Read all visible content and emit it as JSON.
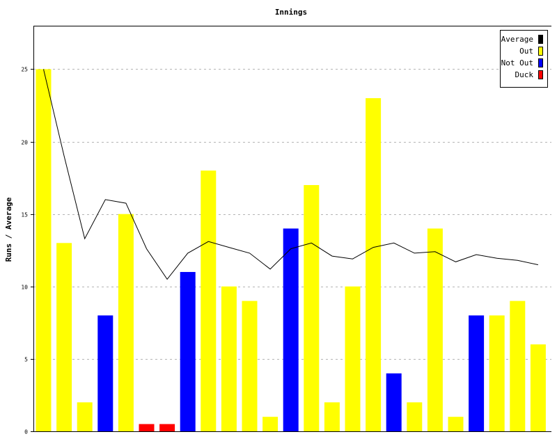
{
  "chart_data": {
    "type": "bar",
    "title": "Innings",
    "xlabel": "",
    "ylabel": "Runs / Average",
    "ylim": [
      0,
      28
    ],
    "yticks": [
      0,
      5,
      10,
      15,
      20,
      25
    ],
    "grid": true,
    "legend_position": "top-right",
    "legend": [
      {
        "label": "Average",
        "color": "#000000"
      },
      {
        "label": "Out",
        "color": "#ffff00"
      },
      {
        "label": "Not Out",
        "color": "#0000ff"
      },
      {
        "label": "Duck",
        "color": "#ff0000"
      }
    ],
    "innings": [
      {
        "runs": 25,
        "status": "Out"
      },
      {
        "runs": 13,
        "status": "Out"
      },
      {
        "runs": 2,
        "status": "Out"
      },
      {
        "runs": 8,
        "status": "Not Out"
      },
      {
        "runs": 15,
        "status": "Out"
      },
      {
        "runs": 0,
        "status": "Duck"
      },
      {
        "runs": 0,
        "status": "Duck"
      },
      {
        "runs": 11,
        "status": "Not Out"
      },
      {
        "runs": 18,
        "status": "Out"
      },
      {
        "runs": 10,
        "status": "Out"
      },
      {
        "runs": 9,
        "status": "Out"
      },
      {
        "runs": 1,
        "status": "Out"
      },
      {
        "runs": 14,
        "status": "Not Out"
      },
      {
        "runs": 17,
        "status": "Out"
      },
      {
        "runs": 2,
        "status": "Out"
      },
      {
        "runs": 10,
        "status": "Out"
      },
      {
        "runs": 23,
        "status": "Out"
      },
      {
        "runs": 4,
        "status": "Not Out"
      },
      {
        "runs": 2,
        "status": "Out"
      },
      {
        "runs": 14,
        "status": "Out"
      },
      {
        "runs": 1,
        "status": "Out"
      },
      {
        "runs": 8,
        "status": "Not Out"
      },
      {
        "runs": 8,
        "status": "Out"
      },
      {
        "runs": 9,
        "status": "Out"
      },
      {
        "runs": 6,
        "status": "Out"
      }
    ],
    "average_series": [
      25,
      19,
      13.3,
      16,
      15.75,
      12.6,
      10.5,
      12.3,
      13.1,
      12.7,
      12.3,
      11.2,
      12.6,
      13,
      12.1,
      11.9,
      12.7,
      13,
      12.3,
      12.4,
      11.7,
      12.2,
      11.95,
      11.8,
      11.5
    ]
  }
}
